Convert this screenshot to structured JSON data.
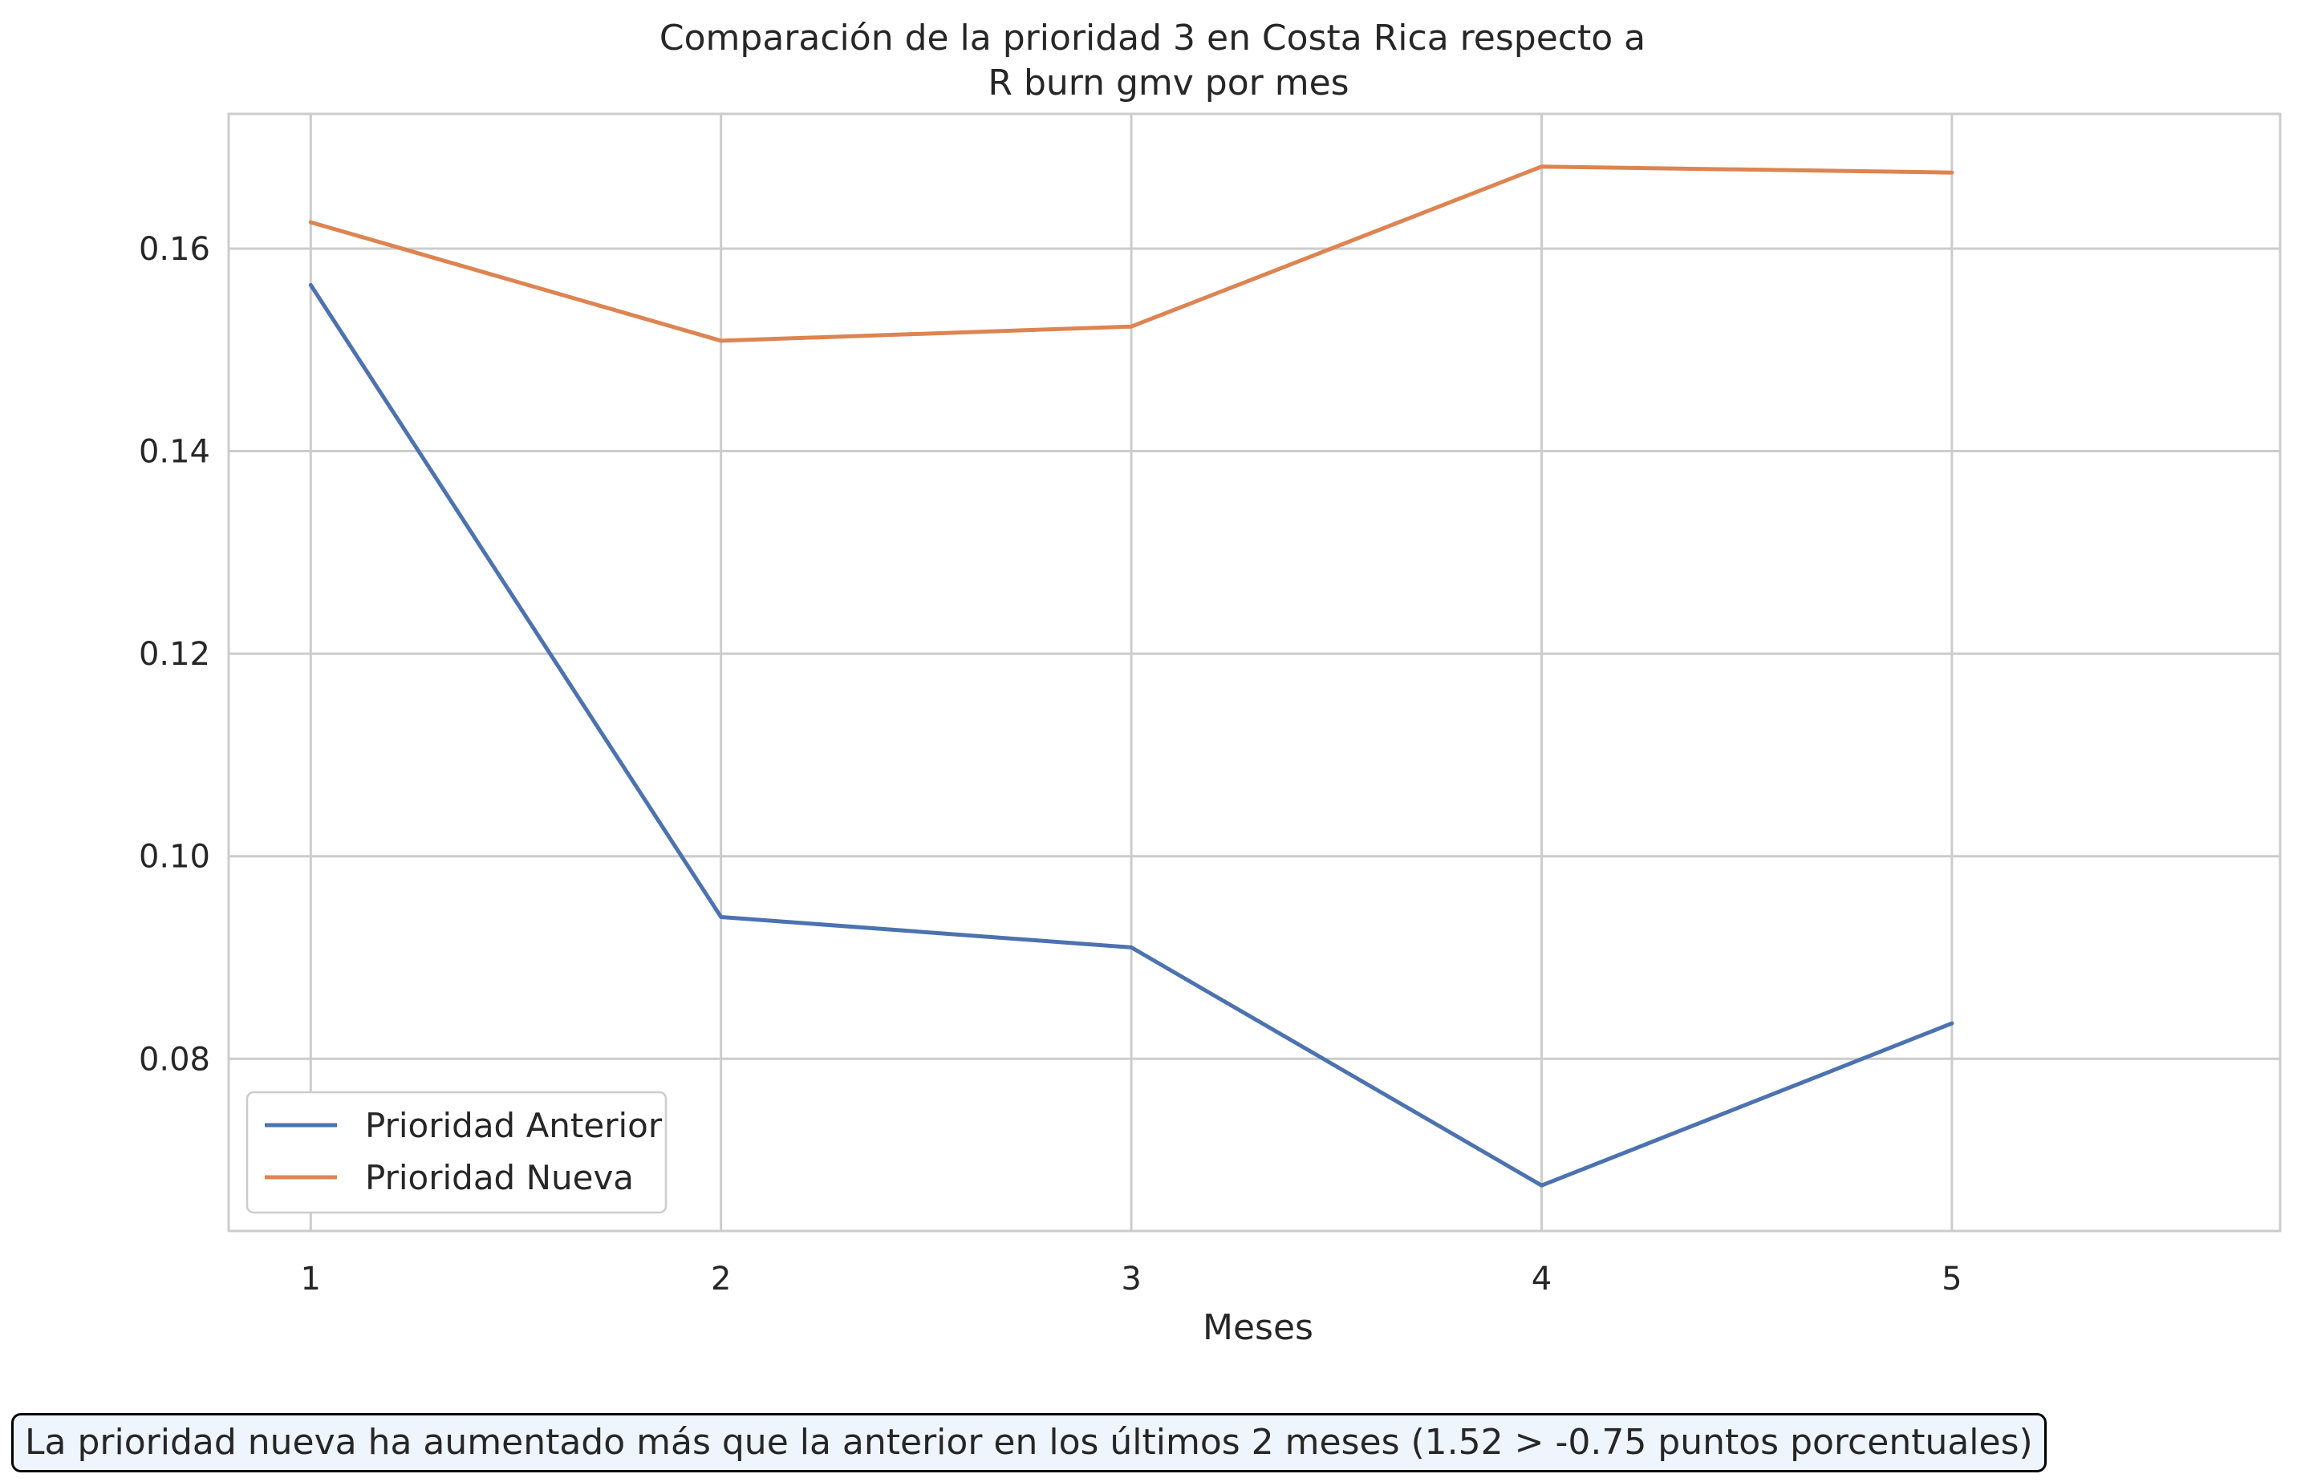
{
  "chart_data": {
    "type": "line",
    "title": "Comparación de la prioridad 3 en Costa Rica respecto a",
    "subtitle": "R burn gmv por mes",
    "xlabel": "Meses",
    "ylabel": "",
    "x": [
      1,
      2,
      3,
      4,
      5
    ],
    "xticks": [
      "1",
      "2",
      "3",
      "4",
      "5"
    ],
    "yticks": [
      "0.08",
      "0.10",
      "0.12",
      "0.14",
      "0.16"
    ],
    "ylim": [
      0.063,
      0.1733
    ],
    "xlim": [
      0.8,
      5.8
    ],
    "grid": true,
    "legend_position": "lower-left",
    "series": [
      {
        "name": "Prioridad Anterior",
        "color": "#4c72b0",
        "values": [
          0.1564,
          0.094,
          0.091,
          0.0675,
          0.0835
        ]
      },
      {
        "name": "Prioridad Nueva",
        "color": "#dd8452",
        "values": [
          0.1626,
          0.1509,
          0.1523,
          0.1681,
          0.1675
        ]
      }
    ]
  },
  "annotation": "La prioridad nueva ha aumentado más que la anterior en los últimos 2 meses (1.52 > -0.75 puntos porcentuales)"
}
